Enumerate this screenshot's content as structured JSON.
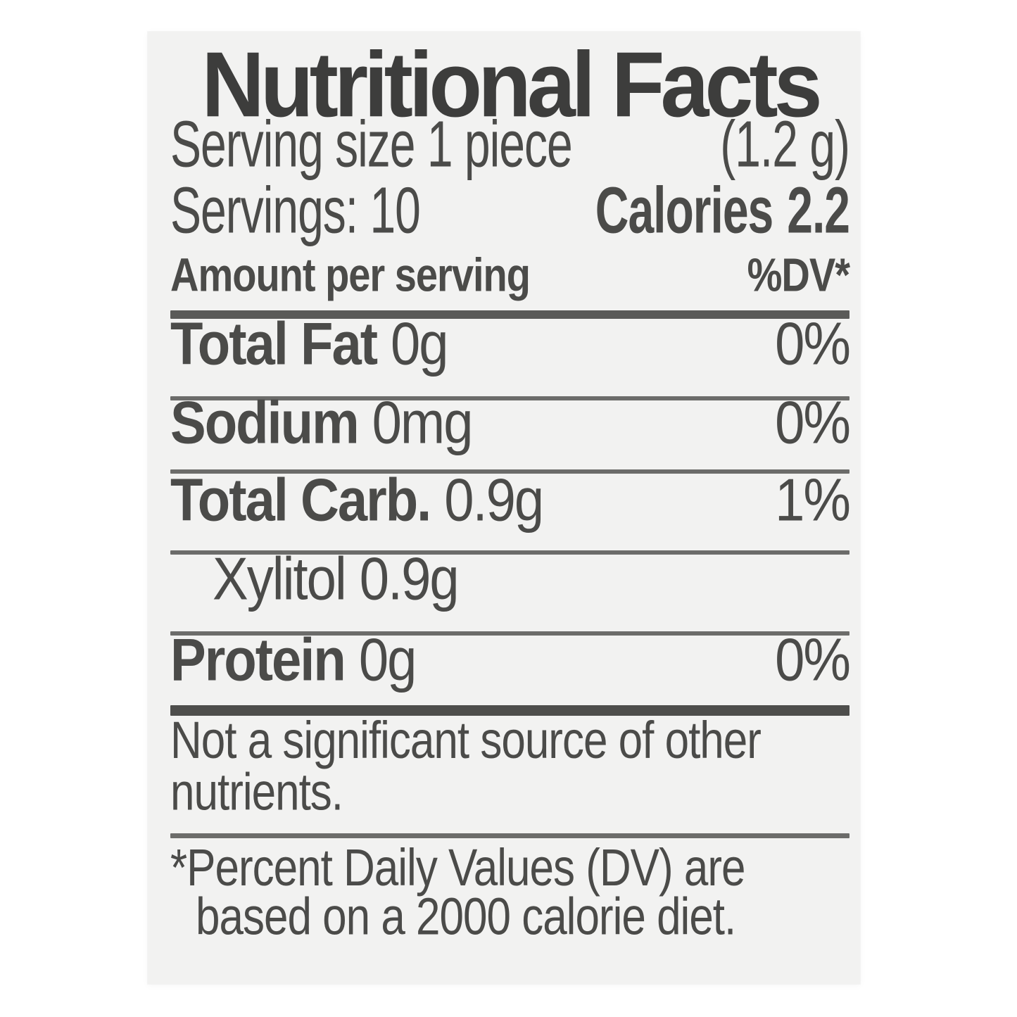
{
  "panel": {
    "title": "Nutritional Facts",
    "serving_row": {
      "label": "Serving size 1 piece",
      "weight": "(1.2 g)"
    },
    "servings_row": {
      "servings": "Servings: 10",
      "calories_label": "Calories",
      "calories_value": "2.2"
    },
    "column_header": {
      "left": "Amount per serving",
      "right": "%DV*"
    },
    "nutrients": [
      {
        "name": "Total Fat",
        "amount": "0g",
        "dv": "0%"
      },
      {
        "name": "Sodium",
        "amount": "0mg",
        "dv": "0%"
      },
      {
        "name": "Total Carb.",
        "amount": "0.9g",
        "dv": "1%"
      },
      {
        "name": "Xylitol",
        "amount": "0.9g",
        "dv": ""
      },
      {
        "name": "Protein",
        "amount": "0g",
        "dv": "0%"
      }
    ],
    "note_lines": [
      "Not a significant source of other",
      "nutrients."
    ],
    "footnote_lines": [
      "*Percent Daily Values (DV) are",
      "based on a 2000 calorie diet."
    ],
    "colors": {
      "page_background": "#ffffff",
      "label_background": "#f2f2f1",
      "text": "#4b4b49",
      "title_text": "#3d3d3c",
      "rule_thin": "#6c6c6a",
      "rule_thick": "#5a5a58",
      "rule_heavy": "#4e4e4c"
    }
  }
}
